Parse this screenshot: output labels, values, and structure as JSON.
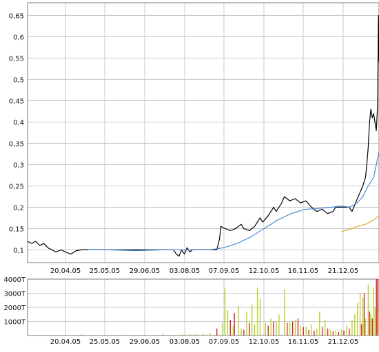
{
  "chart_data": [
    {
      "type": "line",
      "x_tick_labels": [
        "20.04.05",
        "25.05.05",
        "29.06.05",
        "03.08.05",
        "07.09.05",
        "12.10.05",
        "16.11.05",
        "21.12.05"
      ],
      "y_tick_labels": [
        "0,1",
        "0,15",
        "0,2",
        "0,25",
        "0,3",
        "0,35",
        "0,4",
        "0,45",
        "0,5",
        "0,55",
        "0,6",
        "0,65"
      ],
      "ylim": [
        0.07,
        0.68
      ],
      "x_count": 260,
      "grid": true,
      "colors": {
        "price": "#000000",
        "ma_long": "#3b82d8",
        "ma_short": "#e3a21a"
      },
      "series": [
        {
          "key": "price",
          "points": [
            [
              0,
              0.12
            ],
            [
              3,
              0.115
            ],
            [
              6,
              0.12
            ],
            [
              9,
              0.11
            ],
            [
              12,
              0.115
            ],
            [
              15,
              0.105
            ],
            [
              18,
              0.1
            ],
            [
              21,
              0.095
            ],
            [
              25,
              0.1
            ],
            [
              28,
              0.095
            ],
            [
              32,
              0.09
            ],
            [
              36,
              0.098
            ],
            [
              40,
              0.1
            ],
            [
              45,
              0.1
            ],
            [
              50,
              0.1
            ],
            [
              55,
              0.1
            ],
            [
              60,
              0.1
            ],
            [
              65,
              0.1
            ],
            [
              70,
              0.1
            ],
            [
              75,
              0.1
            ],
            [
              80,
              0.1
            ],
            [
              85,
              0.1
            ],
            [
              90,
              0.1
            ],
            [
              95,
              0.1
            ],
            [
              100,
              0.1
            ],
            [
              105,
              0.1
            ],
            [
              108,
              0.1
            ],
            [
              110,
              0.09
            ],
            [
              112,
              0.085
            ],
            [
              114,
              0.1
            ],
            [
              116,
              0.09
            ],
            [
              118,
              0.105
            ],
            [
              120,
              0.095
            ],
            [
              122,
              0.1
            ],
            [
              126,
              0.1
            ],
            [
              130,
              0.1
            ],
            [
              136,
              0.1
            ],
            [
              140,
              0.1
            ],
            [
              142,
              0.125
            ],
            [
              143,
              0.155
            ],
            [
              146,
              0.15
            ],
            [
              150,
              0.145
            ],
            [
              154,
              0.15
            ],
            [
              158,
              0.16
            ],
            [
              160,
              0.15
            ],
            [
              164,
              0.145
            ],
            [
              168,
              0.155
            ],
            [
              172,
              0.175
            ],
            [
              174,
              0.165
            ],
            [
              178,
              0.18
            ],
            [
              182,
              0.2
            ],
            [
              184,
              0.19
            ],
            [
              188,
              0.21
            ],
            [
              190,
              0.225
            ],
            [
              194,
              0.215
            ],
            [
              198,
              0.22
            ],
            [
              202,
              0.21
            ],
            [
              206,
              0.215
            ],
            [
              210,
              0.2
            ],
            [
              214,
              0.19
            ],
            [
              218,
              0.195
            ],
            [
              222,
              0.185
            ],
            [
              226,
              0.19
            ],
            [
              228,
              0.2
            ],
            [
              230,
              0.2
            ],
            [
              232,
              0.2
            ],
            [
              234,
              0.2
            ],
            [
              236,
              0.2
            ],
            [
              238,
              0.2
            ],
            [
              240,
              0.19
            ],
            [
              242,
              0.205
            ],
            [
              244,
              0.22
            ],
            [
              246,
              0.235
            ],
            [
              248,
              0.25
            ],
            [
              249,
              0.26
            ],
            [
              250,
              0.27
            ],
            [
              251,
              0.3
            ],
            [
              252,
              0.34
            ],
            [
              253,
              0.4
            ],
            [
              254,
              0.43
            ],
            [
              255,
              0.41
            ],
            [
              256,
              0.42
            ],
            [
              257,
              0.4
            ],
            [
              258,
              0.38
            ],
            [
              259,
              0.44
            ],
            [
              259.6,
              0.65
            ],
            [
              260,
              0.54
            ]
          ]
        },
        {
          "key": "ma_long",
          "points": [
            [
              45,
              0.1
            ],
            [
              60,
              0.1
            ],
            [
              80,
              0.098
            ],
            [
              100,
              0.1
            ],
            [
              120,
              0.1
            ],
            [
              135,
              0.1
            ],
            [
              145,
              0.105
            ],
            [
              155,
              0.115
            ],
            [
              165,
              0.13
            ],
            [
              175,
              0.15
            ],
            [
              185,
              0.17
            ],
            [
              195,
              0.185
            ],
            [
              205,
              0.195
            ],
            [
              215,
              0.197
            ],
            [
              225,
              0.2
            ],
            [
              232,
              0.203
            ],
            [
              238,
              0.2
            ],
            [
              244,
              0.21
            ],
            [
              248,
              0.225
            ],
            [
              252,
              0.25
            ],
            [
              256,
              0.27
            ],
            [
              260,
              0.33
            ]
          ]
        },
        {
          "key": "ma_short",
          "points": [
            [
              232,
              0.143
            ],
            [
              238,
              0.148
            ],
            [
              244,
              0.155
            ],
            [
              250,
              0.16
            ],
            [
              256,
              0.17
            ],
            [
              260,
              0.18
            ]
          ]
        }
      ]
    },
    {
      "type": "bar",
      "x_tick_labels": [
        "20.04.05",
        "25.05.05",
        "29.06.05",
        "03.08.05",
        "07.09.05",
        "12.10.05",
        "16.11.05",
        "21.12.05"
      ],
      "y_tick_labels": [
        "1000T",
        "2000T",
        "3000T",
        "4000T"
      ],
      "ylim": [
        0,
        4000
      ],
      "unit": "T",
      "grid": true,
      "colors": {
        "up": "#b5d334",
        "down": "#d42a2a"
      },
      "series": [
        {
          "key": "up",
          "values": [
            [
              0,
              30
            ],
            [
              28,
              20
            ],
            [
              55,
              25
            ],
            [
              90,
              20
            ],
            [
              110,
              40
            ],
            [
              115,
              80
            ],
            [
              120,
              100
            ],
            [
              125,
              110
            ],
            [
              130,
              140
            ],
            [
              135,
              180
            ],
            [
              140,
              220
            ],
            [
              144,
              900
            ],
            [
              146,
              3400
            ],
            [
              148,
              1800
            ],
            [
              152,
              700
            ],
            [
              156,
              2100
            ],
            [
              158,
              500
            ],
            [
              162,
              1700
            ],
            [
              166,
              2200
            ],
            [
              168,
              800
            ],
            [
              170,
              3400
            ],
            [
              172,
              2600
            ],
            [
              176,
              900
            ],
            [
              180,
              1200
            ],
            [
              184,
              1000
            ],
            [
              186,
              1500
            ],
            [
              190,
              3300
            ],
            [
              194,
              900
            ],
            [
              198,
              1100
            ],
            [
              202,
              700
            ],
            [
              206,
              600
            ],
            [
              210,
              800
            ],
            [
              214,
              500
            ],
            [
              216,
              1700
            ],
            [
              220,
              1100
            ],
            [
              224,
              400
            ],
            [
              228,
              350
            ],
            [
              232,
              450
            ],
            [
              236,
              700
            ],
            [
              240,
              1100
            ],
            [
              242,
              1500
            ],
            [
              244,
              2300
            ],
            [
              246,
              3000
            ],
            [
              248,
              2700
            ],
            [
              250,
              1200
            ],
            [
              252,
              3600
            ],
            [
              254,
              1500
            ],
            [
              256,
              3400
            ],
            [
              257,
              2000
            ],
            [
              258,
              3600
            ],
            [
              259,
              3300
            ],
            [
              260,
              1500
            ]
          ]
        },
        {
          "key": "down",
          "values": [
            [
              10,
              30
            ],
            [
              40,
              60
            ],
            [
              70,
              40
            ],
            [
              100,
              60
            ],
            [
              140,
              500
            ],
            [
              150,
              1100
            ],
            [
              153,
              1600
            ],
            [
              160,
              400
            ],
            [
              164,
              900
            ],
            [
              178,
              700
            ],
            [
              182,
              1000
            ],
            [
              192,
              900
            ],
            [
              196,
              1000
            ],
            [
              200,
              1200
            ],
            [
              204,
              600
            ],
            [
              208,
              400
            ],
            [
              212,
              350
            ],
            [
              218,
              600
            ],
            [
              222,
              500
            ],
            [
              226,
              300
            ],
            [
              230,
              250
            ],
            [
              234,
              350
            ],
            [
              238,
              500
            ],
            [
              247,
              800
            ],
            [
              249,
              3000
            ],
            [
              253,
              1700
            ],
            [
              255,
              1200
            ],
            [
              258,
              4000
            ],
            [
              259,
              4000
            ]
          ]
        }
      ]
    }
  ]
}
